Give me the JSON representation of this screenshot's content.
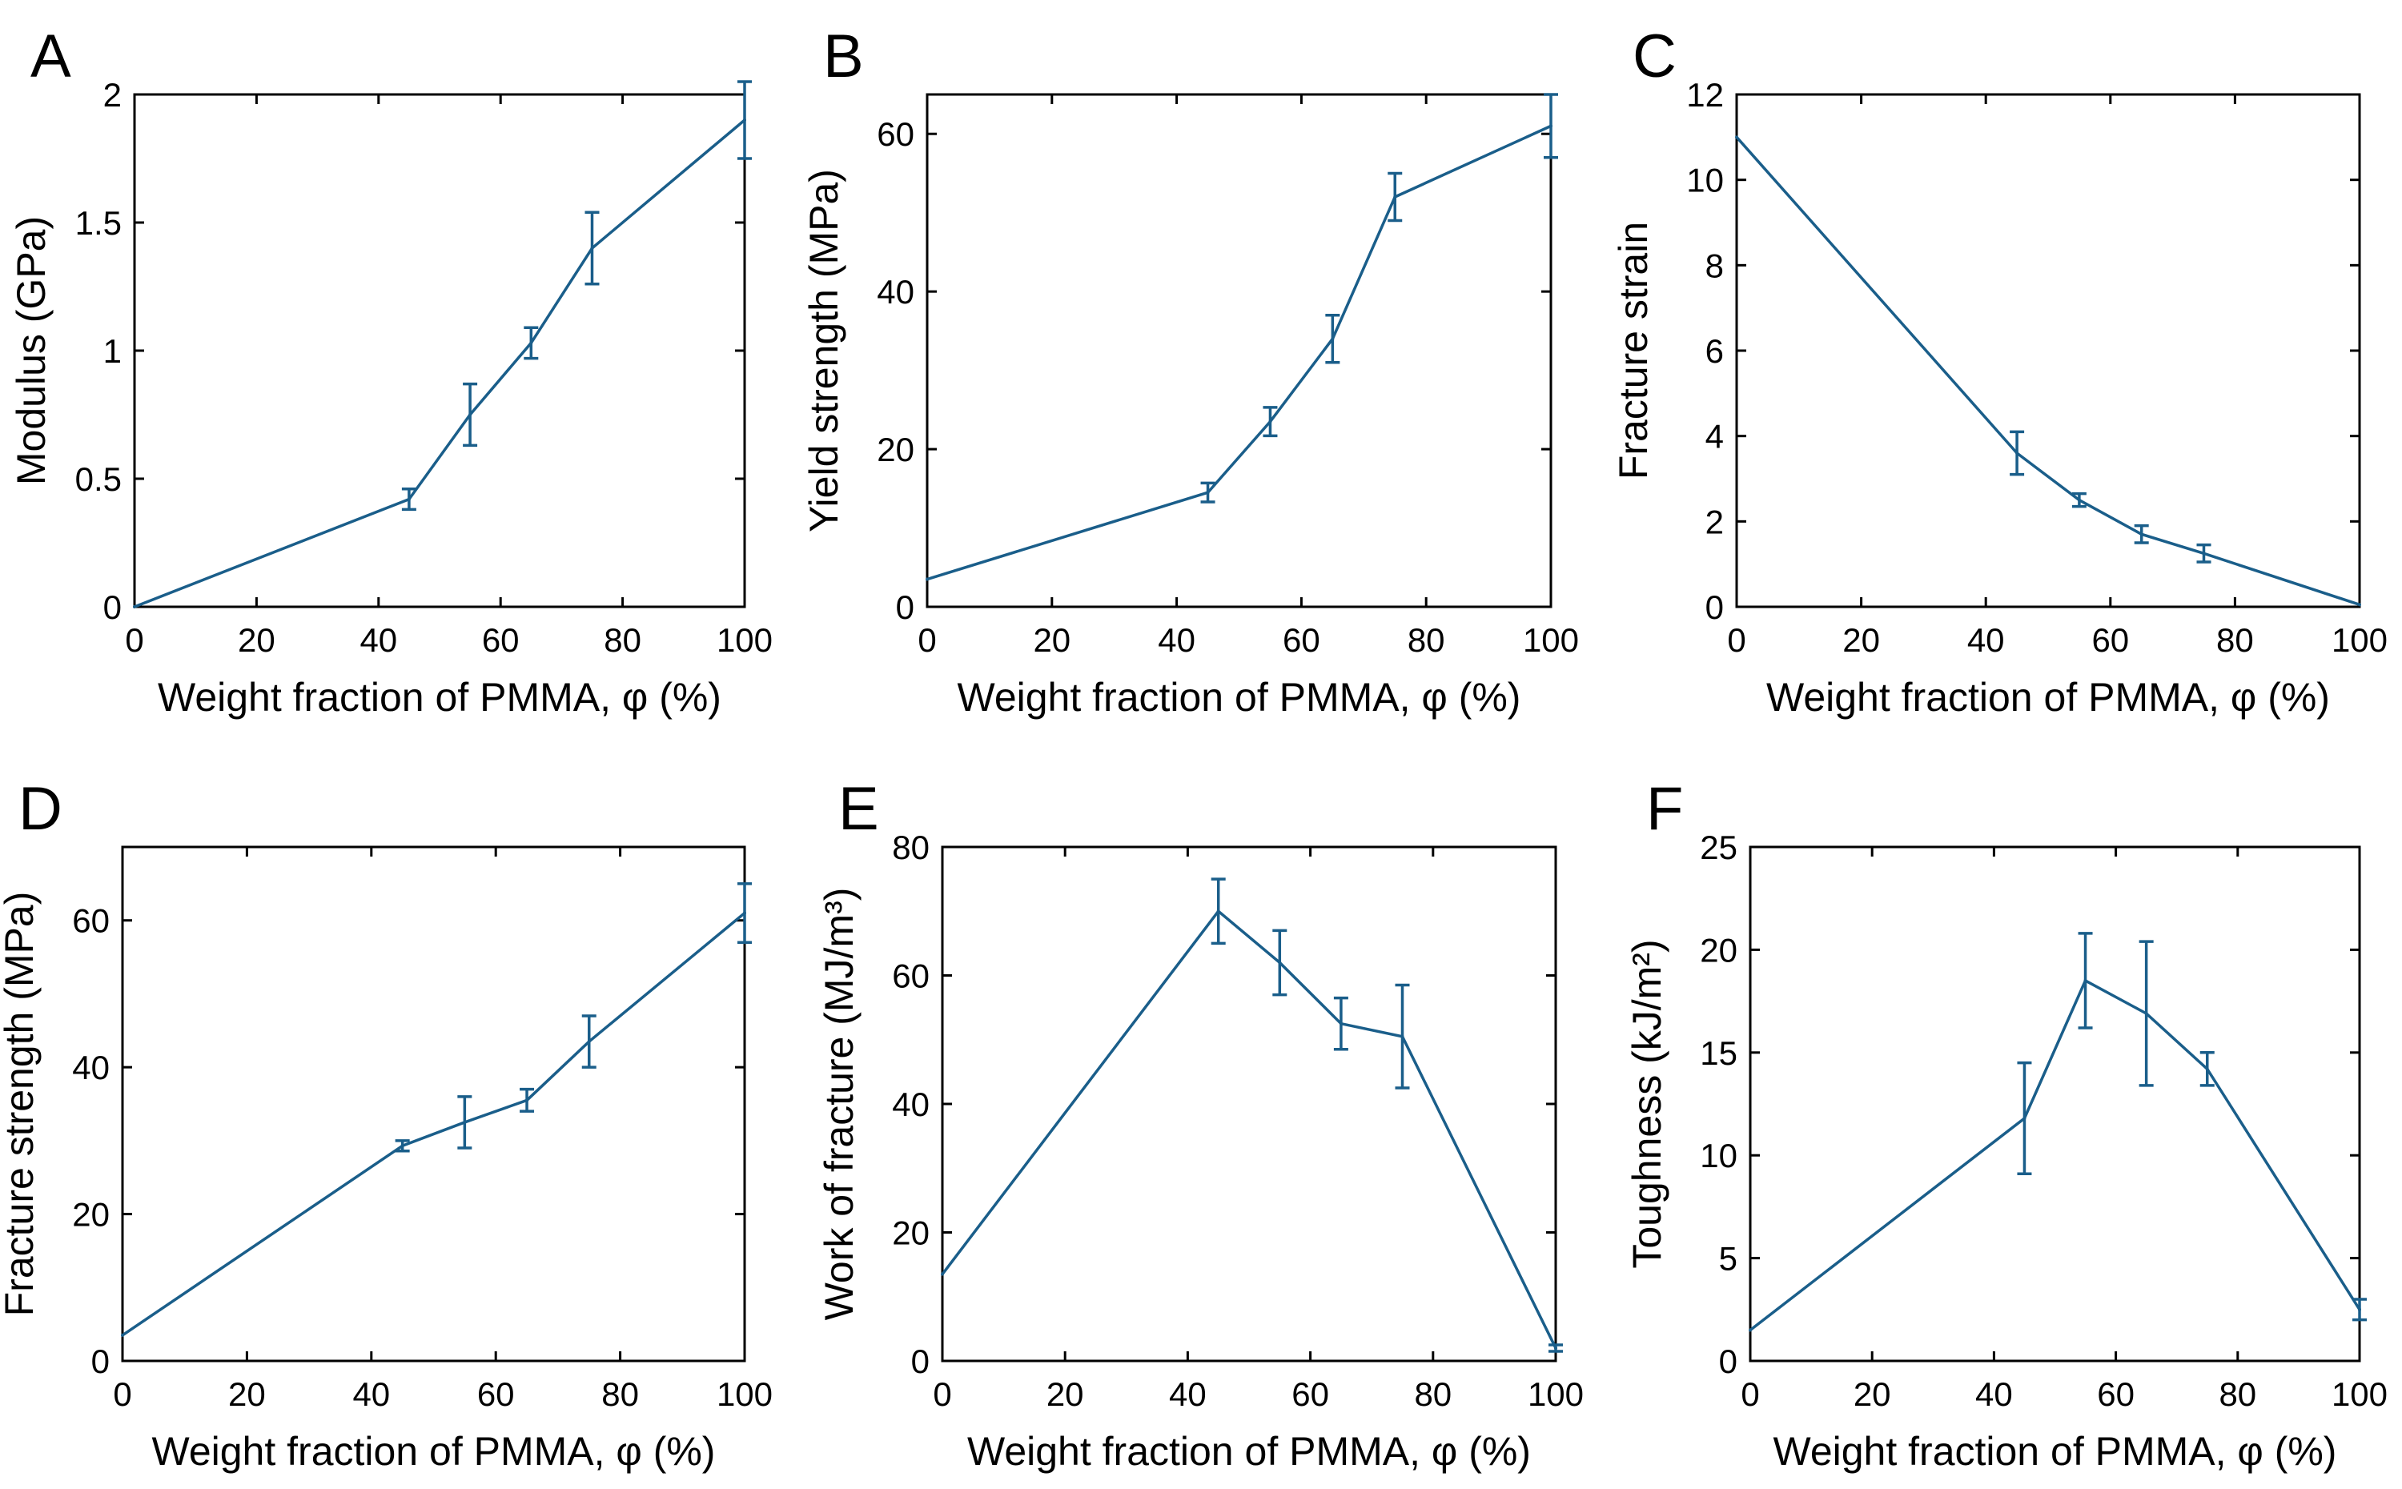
{
  "chart_data": [
    {
      "panel": "A",
      "type": "line",
      "xlabel": "Weight fraction of PMMA, φ (%)",
      "ylabel": "Modulus (GPa)",
      "xlim": [
        0,
        100
      ],
      "ylim": [
        0,
        2
      ],
      "xticks": [
        "0",
        "20",
        "40",
        "60",
        "80",
        "100"
      ],
      "yticks": [
        "0",
        "0.5",
        "1",
        "1.5",
        "2"
      ],
      "ytick_values": [
        0,
        0.5,
        1,
        1.5,
        2
      ],
      "grid": false,
      "color": "#1a5e8a",
      "x": [
        0,
        45,
        55,
        65,
        75,
        100
      ],
      "y": [
        0,
        0.42,
        0.75,
        1.03,
        1.4,
        1.9
      ],
      "err": [
        0,
        0.04,
        0.12,
        0.06,
        0.14,
        0.15
      ]
    },
    {
      "panel": "B",
      "type": "line",
      "xlabel": "Weight fraction of PMMA, φ (%)",
      "ylabel": "Yield strength (MPa)",
      "xlim": [
        0,
        100
      ],
      "ylim": [
        0,
        65
      ],
      "xticks": [
        "0",
        "20",
        "40",
        "60",
        "80",
        "100"
      ],
      "yticks": [
        "0",
        "20",
        "40",
        "60"
      ],
      "ytick_values": [
        0,
        20,
        40,
        60
      ],
      "grid": false,
      "color": "#1a5e8a",
      "x": [
        0,
        45,
        55,
        65,
        75,
        100
      ],
      "y": [
        3.5,
        14.5,
        23.5,
        34,
        52,
        61
      ],
      "err": [
        0,
        1.2,
        1.8,
        3,
        3,
        4
      ]
    },
    {
      "panel": "C",
      "type": "line",
      "xlabel": "Weight fraction of PMMA, φ (%)",
      "ylabel": "Fracture strain",
      "xlim": [
        0,
        100
      ],
      "ylim": [
        0,
        12
      ],
      "xticks": [
        "0",
        "20",
        "40",
        "60",
        "80",
        "100"
      ],
      "yticks": [
        "0",
        "2",
        "4",
        "6",
        "8",
        "10",
        "12"
      ],
      "ytick_values": [
        0,
        2,
        4,
        6,
        8,
        10,
        12
      ],
      "grid": false,
      "color": "#1a5e8a",
      "x": [
        0,
        45,
        55,
        65,
        75,
        100
      ],
      "y": [
        11,
        3.6,
        2.5,
        1.7,
        1.25,
        0.05
      ],
      "err": [
        0,
        0.5,
        0.15,
        0.2,
        0.2,
        0
      ]
    },
    {
      "panel": "D",
      "type": "line",
      "xlabel": "Weight fraction of PMMA, φ (%)",
      "ylabel": "Fracture strength (MPa)",
      "xlim": [
        0,
        100
      ],
      "ylim": [
        0,
        70
      ],
      "xticks": [
        "0",
        "20",
        "40",
        "60",
        "80",
        "100"
      ],
      "yticks": [
        "0",
        "20",
        "40",
        "60"
      ],
      "ytick_values": [
        0,
        20,
        40,
        60
      ],
      "grid": false,
      "color": "#1a5e8a",
      "x": [
        0,
        45,
        55,
        65,
        75,
        100
      ],
      "y": [
        3.5,
        29.3,
        32.5,
        35.5,
        43.5,
        61
      ],
      "err": [
        0,
        0.7,
        3.5,
        1.5,
        3.5,
        4
      ]
    },
    {
      "panel": "E",
      "type": "line",
      "xlabel": "Weight fraction of PMMA, φ (%)",
      "ylabel": "Work of fracture (MJ/m³)",
      "xlim": [
        0,
        100
      ],
      "ylim": [
        0,
        80
      ],
      "xticks": [
        "0",
        "20",
        "40",
        "60",
        "80",
        "100"
      ],
      "yticks": [
        "0",
        "20",
        "40",
        "60",
        "80"
      ],
      "ytick_values": [
        0,
        20,
        40,
        60,
        80
      ],
      "grid": false,
      "color": "#1a5e8a",
      "x": [
        0,
        45,
        55,
        65,
        75,
        100
      ],
      "y": [
        13.5,
        70,
        62,
        52.5,
        50.5,
        2
      ],
      "err": [
        0,
        5,
        5,
        4,
        8,
        0.5
      ]
    },
    {
      "panel": "F",
      "type": "line",
      "xlabel": "Weight fraction of PMMA, φ (%)",
      "ylabel": "Toughness (kJ/m²)",
      "xlim": [
        0,
        100
      ],
      "ylim": [
        0,
        25
      ],
      "xticks": [
        "0",
        "20",
        "40",
        "60",
        "80",
        "100"
      ],
      "yticks": [
        "0",
        "5",
        "10",
        "15",
        "20",
        "25"
      ],
      "ytick_values": [
        0,
        5,
        10,
        15,
        20,
        25
      ],
      "grid": false,
      "color": "#1a5e8a",
      "x": [
        0,
        45,
        55,
        65,
        75,
        100
      ],
      "y": [
        1.5,
        11.8,
        18.5,
        16.9,
        14.2,
        2.5
      ],
      "err": [
        0,
        2.7,
        2.3,
        3.5,
        0.8,
        0.5
      ]
    }
  ]
}
